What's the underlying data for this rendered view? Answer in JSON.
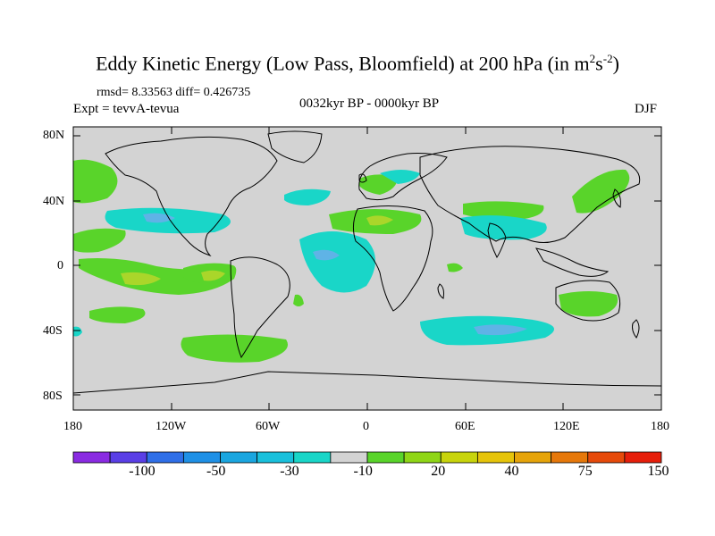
{
  "title": {
    "prefix": "Eddy Kinetic Energy (Low Pass, Bloomfield) at 200 hPa (in m",
    "sup1": "2",
    "mid": "s",
    "sup2": "-2",
    "suffix": ")"
  },
  "stats": "rmsd= 8.33563 diff= 0.426735",
  "expt": "Expt = tevvA-tevua",
  "period": "0032kyr BP - 0000kyr BP",
  "season": "DJF",
  "lat_labels": [
    "80N",
    "40N",
    "0",
    "40S",
    "80S"
  ],
  "lon_labels": [
    "180",
    "120W",
    "60W",
    "0",
    "60E",
    "120E",
    "180"
  ],
  "colorbar": {
    "colors": [
      "#8a2be2",
      "#5a3fe6",
      "#2f6fe8",
      "#1e90e6",
      "#1aa6e0",
      "#19c0dc",
      "#19d6c8",
      "#d3d3d3",
      "#59d42a",
      "#8fd616",
      "#c8d40c",
      "#e6c40a",
      "#e6a40a",
      "#e6780a",
      "#e64a0a",
      "#e61e0a"
    ],
    "labels": [
      "-100",
      "-50",
      "-30",
      "-10",
      "20",
      "40",
      "75",
      "150"
    ],
    "label_indices": [
      2,
      4,
      6,
      8,
      10,
      12,
      14,
      16
    ]
  },
  "map": {
    "background": "#d3d3d3",
    "neg_color": "#19d6c8",
    "neg2_color": "#5fb3e6",
    "pos_color": "#59d42a",
    "pos2_color": "#aad62a"
  }
}
